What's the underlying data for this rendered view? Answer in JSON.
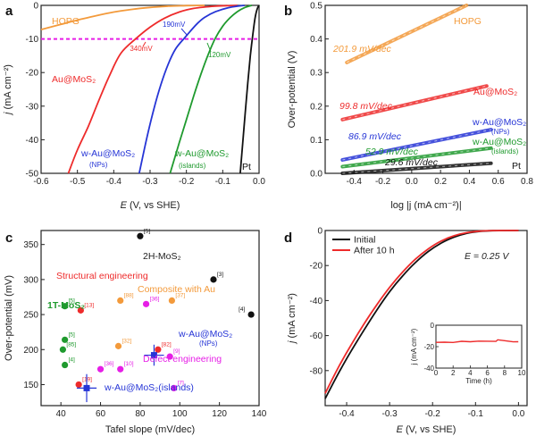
{
  "colors": {
    "hopg": "#f39a3b",
    "au": "#ee2b2b",
    "nps": "#2635d6",
    "islands": "#1f9a2e",
    "pt": "#111111",
    "magenta": "#e61ee6",
    "dark": "#222222",
    "grey": "#9a9a9a",
    "orange": "#f39a3b",
    "red": "#ee2b2b",
    "green": "#1f9a2e",
    "blue": "#2635d6"
  },
  "chart_data": [
    {
      "panel": "a",
      "type": "line",
      "xlabel_main": "E",
      "xlabel_rest": " (V, vs SHE)",
      "ylabel_main": "j",
      "ylabel_rest": " (mA cm⁻²)",
      "xlim": [
        -0.6,
        0.0
      ],
      "ylim": [
        -50,
        0
      ],
      "xticks": [
        "-0.6",
        "-0.5",
        "-0.4",
        "-0.3",
        "-0.2",
        "-0.1",
        "0.0"
      ],
      "yticks": [
        "0",
        "-10",
        "-20",
        "-30",
        "-40",
        "-50"
      ],
      "reference_line": {
        "y": -10,
        "color": "magenta"
      },
      "series": [
        {
          "name": "HOPG",
          "color": "hopg",
          "points": [
            [
              -0.6,
              -7.2
            ],
            [
              -0.55,
              -5.8
            ],
            [
              -0.5,
              -4.4
            ],
            [
              -0.45,
              -3.1
            ],
            [
              -0.4,
              -2.0
            ],
            [
              -0.35,
              -1.2
            ],
            [
              -0.3,
              -0.6
            ],
            [
              -0.25,
              -0.25
            ],
            [
              -0.2,
              -0.08
            ],
            [
              -0.15,
              0
            ]
          ]
        },
        {
          "name": "Au@MoS₂",
          "color": "au",
          "points": [
            [
              -0.525,
              -50
            ],
            [
              -0.5,
              -43
            ],
            [
              -0.47,
              -36
            ],
            [
              -0.44,
              -28
            ],
            [
              -0.41,
              -20.5
            ],
            [
              -0.38,
              -14.2
            ],
            [
              -0.34,
              -10
            ],
            [
              -0.3,
              -6.5
            ],
            [
              -0.26,
              -3.8
            ],
            [
              -0.22,
              -2.0
            ],
            [
              -0.18,
              -0.9
            ],
            [
              -0.12,
              -0.25
            ],
            [
              -0.06,
              0
            ]
          ]
        },
        {
          "name": "w-Au@MoS₂ (NPs)",
          "color": "nps",
          "points": [
            [
              -0.33,
              -50
            ],
            [
              -0.31,
              -40
            ],
            [
              -0.29,
              -31
            ],
            [
              -0.27,
              -23.5
            ],
            [
              -0.25,
              -17.5
            ],
            [
              -0.23,
              -13
            ],
            [
              -0.205,
              -9.7
            ],
            [
              -0.19,
              -7.8
            ],
            [
              -0.17,
              -5.4
            ],
            [
              -0.15,
              -3.6
            ],
            [
              -0.12,
              -1.9
            ],
            [
              -0.08,
              -0.6
            ],
            [
              -0.04,
              0
            ]
          ]
        },
        {
          "name": "w-Au@MoS₂ (islands)",
          "color": "islands",
          "points": [
            [
              -0.245,
              -50
            ],
            [
              -0.22,
              -41
            ],
            [
              -0.2,
              -34
            ],
            [
              -0.18,
              -27
            ],
            [
              -0.16,
              -20.5
            ],
            [
              -0.14,
              -14.6
            ],
            [
              -0.12,
              -9.7
            ],
            [
              -0.1,
              -6.2
            ],
            [
              -0.08,
              -3.7
            ],
            [
              -0.06,
              -1.9
            ],
            [
              -0.04,
              -0.7
            ],
            [
              -0.02,
              0
            ]
          ]
        },
        {
          "name": "Pt",
          "color": "pt",
          "points": [
            [
              -0.052,
              -50
            ],
            [
              -0.045,
              -41
            ],
            [
              -0.038,
              -32
            ],
            [
              -0.031,
              -23
            ],
            [
              -0.024,
              -15
            ],
            [
              -0.017,
              -8.5
            ],
            [
              -0.011,
              -3.8
            ],
            [
              -0.005,
              -1
            ],
            [
              0.0,
              0
            ]
          ]
        }
      ],
      "annotations": [
        {
          "text": "HOPG",
          "color": "hopg"
        },
        {
          "text": "340mV",
          "color": "au"
        },
        {
          "text": "190mV",
          "color": "nps"
        },
        {
          "text": "120mV",
          "color": "islands"
        },
        {
          "text": "Au@MoS₂",
          "color": "au"
        },
        {
          "text": "w-Au@MoS₂",
          "color": "nps"
        },
        {
          "text": "(NPs)",
          "color": "nps"
        },
        {
          "text": "w-Au@MoS₂",
          "color": "islands"
        },
        {
          "text": "(islands)",
          "color": "islands"
        },
        {
          "text": "Pt",
          "color": "pt"
        }
      ]
    },
    {
      "panel": "b",
      "type": "line",
      "xlabel": "log |j (mA cm⁻²)|",
      "ylabel": "Over-potential (V)",
      "xlim": [
        -0.6,
        0.8
      ],
      "ylim": [
        0.0,
        0.5
      ],
      "xticks": [
        "-0.4",
        "-0.2",
        "0.0",
        "0.2",
        "0.4",
        "0.6",
        "0.8"
      ],
      "yticks": [
        "0.5",
        "0.4",
        "0.3",
        "0.2",
        "0.1",
        "0.0"
      ],
      "series": [
        {
          "name": "HOPG",
          "slope": "201.9 mV/dec",
          "color": "hopg",
          "x_range": [
            -0.45,
            0.38
          ],
          "y_range": [
            0.33,
            0.5
          ]
        },
        {
          "name": "Au@MoS₂",
          "slope": "99.8 mV/dec",
          "color": "au",
          "x_range": [
            -0.48,
            0.52
          ],
          "y_range": [
            0.16,
            0.26
          ]
        },
        {
          "name": "w-Au@MoS₂ (NPs)",
          "slope": "86.9 mV/dec",
          "color": "nps",
          "x_range": [
            -0.48,
            0.55
          ],
          "y_range": [
            0.04,
            0.13
          ]
        },
        {
          "name": "w-Au@MoS₂ (islands)",
          "slope": "52.9 mV/dec",
          "color": "islands",
          "x_range": [
            -0.48,
            0.55
          ],
          "y_range": [
            0.02,
            0.075
          ]
        },
        {
          "name": "Pt",
          "slope": "29.6 mV/dec",
          "color": "pt",
          "x_range": [
            -0.48,
            0.55
          ],
          "y_range": [
            0.0,
            0.03
          ]
        }
      ],
      "labels": [
        {
          "text": "HOPG",
          "color": "hopg"
        },
        {
          "text": "Au@MoS₂",
          "color": "au"
        },
        {
          "text": "w-Au@MoS₂",
          "color": "nps"
        },
        {
          "text": "(NPs)",
          "color": "nps"
        },
        {
          "text": "w-Au@MoS₂",
          "color": "islands"
        },
        {
          "text": "(islands)",
          "color": "islands"
        },
        {
          "text": "Pt",
          "color": "pt"
        }
      ]
    },
    {
      "panel": "c",
      "type": "scatter",
      "xlabel": "Tafel slope (mV/dec)",
      "ylabel": "Over-potential (mV)",
      "xlim": [
        30,
        140
      ],
      "ylim": [
        120,
        370
      ],
      "xticks": [
        "40",
        "60",
        "80",
        "100",
        "120",
        "140"
      ],
      "yticks": [
        "350",
        "300",
        "250",
        "200",
        "150"
      ],
      "points": [
        {
          "x": 80,
          "y": 362,
          "color": "pt",
          "ref": "[5]"
        },
        {
          "x": 117,
          "y": 300,
          "color": "pt",
          "ref": "[3]"
        },
        {
          "x": 136,
          "y": 250,
          "color": "pt",
          "ref": "[4]"
        },
        {
          "x": 50,
          "y": 256,
          "color": "red",
          "ref": "[13]"
        },
        {
          "x": 49,
          "y": 150,
          "color": "red",
          "ref": "[19]"
        },
        {
          "x": 89,
          "y": 200,
          "color": "red",
          "ref": "[82]"
        },
        {
          "x": 70,
          "y": 270,
          "color": "orange",
          "ref": "[88]"
        },
        {
          "x": 96,
          "y": 270,
          "color": "orange",
          "ref": "[37]"
        },
        {
          "x": 69,
          "y": 205,
          "color": "orange",
          "ref": "[32]"
        },
        {
          "x": 42,
          "y": 262,
          "color": "green",
          "ref": "[5]"
        },
        {
          "x": 42,
          "y": 214,
          "color": "green",
          "ref": "[5]"
        },
        {
          "x": 41,
          "y": 200,
          "color": "green",
          "ref": "[85]"
        },
        {
          "x": 42,
          "y": 178,
          "color": "green",
          "ref": "[4]"
        },
        {
          "x": 83,
          "y": 265,
          "color": "magenta",
          "ref": "[36]"
        },
        {
          "x": 60,
          "y": 172,
          "color": "magenta",
          "ref": "[36]"
        },
        {
          "x": 70,
          "y": 172,
          "color": "magenta",
          "ref": "[10]"
        },
        {
          "x": 95,
          "y": 190,
          "color": "magenta",
          "ref": "[9]"
        },
        {
          "x": 97,
          "y": 145,
          "color": "magenta",
          "ref": "[7]"
        }
      ],
      "error_points": [
        {
          "name": "w-Au@MoS₂ (NPs)",
          "x": 87,
          "y": 192,
          "xerr": 5,
          "yerr": 15,
          "color": "blue"
        },
        {
          "name": "w-Au@MoS₂ (islands)",
          "x": 53,
          "y": 145,
          "xerr": 5,
          "yerr": 20,
          "color": "blue"
        }
      ],
      "labels": [
        {
          "text": "2H-MoS₂",
          "color": "dark"
        },
        {
          "text": "Structural engineering",
          "color": "red"
        },
        {
          "text": "1T-MoS₂",
          "color": "green"
        },
        {
          "text": "Composite with Au",
          "color": "orange"
        },
        {
          "text": "w-Au@MoS₂",
          "color": "blue"
        },
        {
          "text": "(NPs)",
          "color": "blue"
        },
        {
          "text": "Defect engineering",
          "color": "magenta"
        },
        {
          "text": "w-Au@MoS₂(islands)",
          "color": "blue"
        }
      ]
    },
    {
      "panel": "d",
      "type": "line",
      "xlabel_main": "E",
      "xlabel_rest": " (V, vs SHE)",
      "ylabel_main": "j",
      "ylabel_rest": " (mA cm⁻²)",
      "xlim": [
        -0.45,
        0.02
      ],
      "ylim": [
        -100,
        0
      ],
      "xticks": [
        "-0.4",
        "-0.3",
        "-0.2",
        "-0.1",
        "0.0"
      ],
      "yticks": [
        "0",
        "-20",
        "-40",
        "-60",
        "-80"
      ],
      "legend": [
        "Initial",
        "After 10 h"
      ],
      "series": [
        {
          "name": "Initial",
          "color": "pt",
          "points": [
            [
              -0.45,
              -96
            ],
            [
              -0.42,
              -82
            ],
            [
              -0.39,
              -69
            ],
            [
              -0.36,
              -57
            ],
            [
              -0.33,
              -45.5
            ],
            [
              -0.3,
              -35
            ],
            [
              -0.27,
              -26
            ],
            [
              -0.24,
              -18.3
            ],
            [
              -0.21,
              -12
            ],
            [
              -0.18,
              -7.2
            ],
            [
              -0.15,
              -3.8
            ],
            [
              -0.12,
              -1.6
            ],
            [
              -0.09,
              -0.5
            ],
            [
              -0.06,
              -0.1
            ],
            [
              0.0,
              0
            ]
          ]
        },
        {
          "name": "After 10 h",
          "color": "red",
          "points": [
            [
              -0.45,
              -93
            ],
            [
              -0.42,
              -78.5
            ],
            [
              -0.39,
              -65.5
            ],
            [
              -0.36,
              -53.5
            ],
            [
              -0.33,
              -42.5
            ],
            [
              -0.3,
              -32.5
            ],
            [
              -0.27,
              -23.8
            ],
            [
              -0.24,
              -16.4
            ],
            [
              -0.21,
              -10.5
            ],
            [
              -0.18,
              -6.0
            ],
            [
              -0.15,
              -3.0
            ],
            [
              -0.12,
              -1.2
            ],
            [
              -0.09,
              -0.35
            ],
            [
              -0.06,
              -0.05
            ],
            [
              0.0,
              0
            ]
          ]
        }
      ],
      "inset": {
        "annotation": "E = 0.25 V",
        "xlabel": "Time (h)",
        "ylabel": "j (mA cm⁻²)",
        "xlim": [
          0,
          10
        ],
        "ylim": [
          -40,
          0
        ],
        "xticks": [
          "0",
          "2",
          "4",
          "6",
          "8",
          "10"
        ],
        "yticks": [
          "0",
          "-20",
          "-40"
        ],
        "series": [
          {
            "name": "After 10 h",
            "color": "red",
            "points": [
              [
                0,
                -16
              ],
              [
                1,
                -15.8
              ],
              [
                2,
                -16.1
              ],
              [
                3,
                -15
              ],
              [
                4,
                -15.4
              ],
              [
                5,
                -14.8
              ],
              [
                6,
                -14.9
              ],
              [
                7,
                -15.1
              ],
              [
                7.2,
                -13.6
              ],
              [
                8,
                -14.4
              ],
              [
                9,
                -15.5
              ],
              [
                9.6,
                -15.4
              ]
            ]
          }
        ]
      }
    }
  ]
}
